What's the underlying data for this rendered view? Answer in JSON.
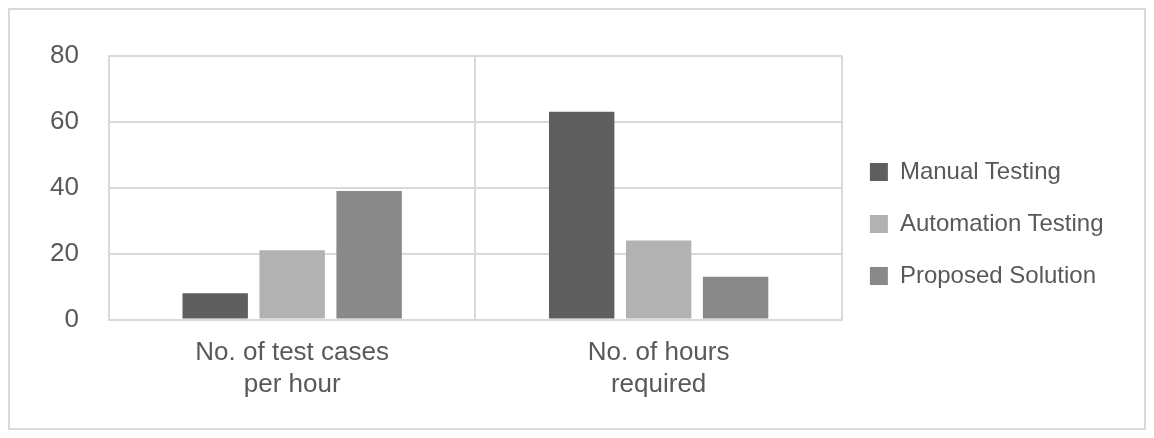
{
  "chart_data": {
    "type": "bar",
    "categories": [
      "No. of test cases per hour",
      "No. of hours required"
    ],
    "series": [
      {
        "name": "Manual Testing",
        "color": "#5f5f5f",
        "values": [
          8,
          63
        ]
      },
      {
        "name": "Automation Testing",
        "color": "#b2b2b2",
        "values": [
          21,
          24
        ]
      },
      {
        "name": "Proposed Solution",
        "color": "#898989",
        "values": [
          39,
          13
        ]
      }
    ],
    "ylim": [
      0,
      80
    ],
    "yticks": [
      0,
      20,
      40,
      60,
      80
    ],
    "grid": true,
    "legend": "right"
  }
}
